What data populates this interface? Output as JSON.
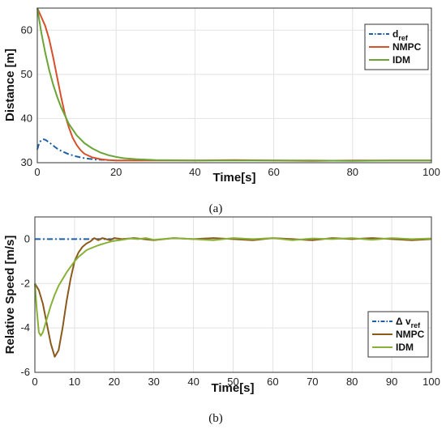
{
  "chart_data": [
    {
      "type": "line",
      "panel_caption": "(a)",
      "xlabel": "Time[s]",
      "ylabel": "Distance [m]",
      "xlim": [
        0,
        100
      ],
      "ylim": [
        30,
        65
      ],
      "xticks": [
        "0",
        "20",
        "40",
        "60",
        "80",
        "100"
      ],
      "yticks": [
        "30",
        "40",
        "50",
        "60"
      ],
      "grid": true,
      "legend_position": "top-right",
      "series": [
        {
          "name": "d",
          "name_subscript": "ref",
          "color": "#1f5fa8",
          "dash": "dashdot",
          "x": [
            0,
            0.5,
            1,
            1.5,
            2,
            3,
            4,
            5,
            6,
            8,
            10,
            12,
            15,
            18
          ],
          "y": [
            33,
            34.5,
            35.1,
            35.3,
            35.2,
            34.6,
            33.9,
            33.2,
            32.7,
            31.9,
            31.4,
            31.0,
            30.7,
            30.6
          ]
        },
        {
          "name": "NMPC",
          "color": "#d6502a",
          "dash": "solid",
          "x": [
            0,
            1,
            2,
            3,
            4,
            5,
            6,
            7,
            8,
            9,
            10,
            11,
            12,
            14,
            16,
            18,
            20,
            22,
            25,
            30,
            40,
            50,
            60,
            70,
            80,
            90,
            100
          ],
          "y": [
            65,
            63,
            61,
            58,
            54,
            49.5,
            45,
            41,
            38,
            35.6,
            34,
            32.8,
            32,
            31.2,
            30.8,
            30.6,
            30.5,
            30.5,
            30.5,
            30.5,
            30.5,
            30.6,
            30.5,
            30.4,
            30.5,
            30.5,
            30.5
          ]
        },
        {
          "name": "IDM",
          "color": "#6aa535",
          "dash": "solid",
          "x": [
            0,
            1,
            2,
            3,
            4,
            5,
            6,
            8,
            10,
            12,
            14,
            16,
            18,
            20,
            22,
            25,
            30,
            40,
            50,
            60,
            70,
            80,
            90,
            100
          ],
          "y": [
            65,
            59.5,
            55,
            51,
            47.8,
            45,
            42.6,
            38.8,
            36.2,
            34.4,
            33.2,
            32.3,
            31.7,
            31.3,
            31.0,
            30.8,
            30.6,
            30.5,
            30.5,
            30.5,
            30.5,
            30.4,
            30.5,
            30.5
          ]
        }
      ]
    },
    {
      "type": "line",
      "panel_caption": "(b)",
      "xlabel": "Time[s]",
      "ylabel": "Relative Speed [m/s]",
      "xlim": [
        0,
        100
      ],
      "ylim": [
        -6,
        1
      ],
      "xticks": [
        "0",
        "10",
        "20",
        "30",
        "40",
        "50",
        "60",
        "70",
        "80",
        "90",
        "100"
      ],
      "yticks": [
        "-6",
        "-4",
        "-2",
        "0"
      ],
      "grid": true,
      "legend_position": "bottom-right",
      "series": [
        {
          "name": "Δ v",
          "name_subscript": "ref",
          "color": "#1f5fa8",
          "dash": "dashdot",
          "x": [
            0,
            20
          ],
          "y": [
            0,
            0
          ]
        },
        {
          "name": "NMPC",
          "color": "#8a5a1c",
          "dash": "solid",
          "x": [
            0,
            1,
            2,
            3,
            4,
            5,
            6,
            7,
            8,
            9,
            10,
            11,
            12,
            13,
            14,
            15,
            16,
            17,
            18,
            19,
            20,
            22,
            25,
            30,
            35,
            40,
            45,
            50,
            55,
            60,
            65,
            70,
            75,
            80,
            85,
            90,
            95,
            100
          ],
          "y": [
            -2,
            -2.3,
            -2.9,
            -3.8,
            -4.7,
            -5.3,
            -5.0,
            -4.0,
            -2.8,
            -1.8,
            -1.0,
            -0.6,
            -0.35,
            -0.2,
            -0.1,
            0.05,
            -0.05,
            0.05,
            0.0,
            -0.05,
            0.05,
            0.0,
            0.05,
            -0.05,
            0.05,
            0.0,
            0.05,
            0.0,
            -0.05,
            0.05,
            0.0,
            -0.05,
            0.05,
            0.0,
            0.05,
            0.0,
            -0.05,
            0.0
          ]
        },
        {
          "name": "IDM",
          "color": "#88b138",
          "dash": "solid",
          "x": [
            0,
            0.5,
            1,
            1.5,
            2,
            3,
            4,
            5,
            6,
            7,
            8,
            9,
            10,
            11,
            12,
            13,
            14,
            15,
            16,
            17,
            18,
            19,
            20,
            22,
            24,
            26,
            28,
            30,
            35,
            40,
            45,
            50,
            55,
            60,
            65,
            70,
            75,
            80,
            85,
            90,
            95,
            100
          ],
          "y": [
            -2,
            -3.2,
            -4.2,
            -4.35,
            -4.2,
            -3.6,
            -3.0,
            -2.5,
            -2.1,
            -1.8,
            -1.5,
            -1.25,
            -1.0,
            -0.8,
            -0.65,
            -0.5,
            -0.42,
            -0.35,
            -0.28,
            -0.22,
            -0.17,
            -0.12,
            -0.08,
            -0.03,
            0.03,
            0.0,
            0.05,
            -0.03,
            0.05,
            0.0,
            -0.05,
            0.05,
            0.0,
            0.05,
            -0.05,
            0.03,
            0.0,
            0.05,
            -0.03,
            0.05,
            0.0,
            0.03
          ]
        }
      ]
    }
  ]
}
